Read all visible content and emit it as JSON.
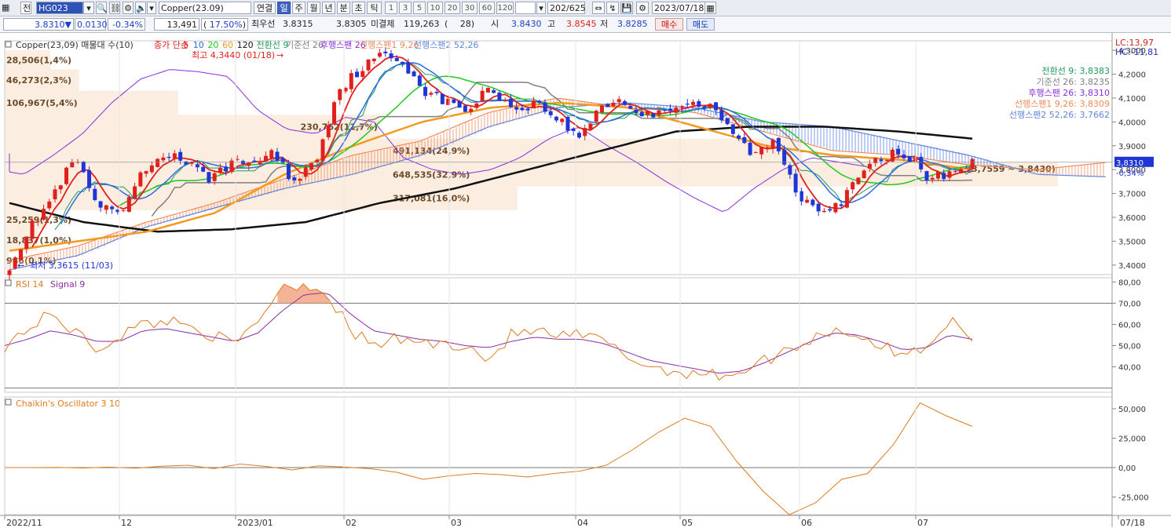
{
  "toolbar": {
    "type_label": "전",
    "symbol_code": "HG023",
    "symbol_name": "Copper(23.09)",
    "continuous": "연결",
    "period_tabs": [
      "일",
      "주",
      "월",
      "년",
      "분",
      "초",
      "틱"
    ],
    "active_period": "일",
    "interval_buttons": [
      "1",
      "3",
      "5",
      "10",
      "20",
      "30",
      "60",
      "120"
    ],
    "count": "202",
    "count_total": "/625",
    "date": "2023/07/18"
  },
  "quote": {
    "price": "3.8310",
    "arrow": "▼",
    "change": "0.0130",
    "change_pct": "-0.34%",
    "volume": "13,491",
    "volume_ratio": "17.50%",
    "best_ask_label": "최우선",
    "best_ask": "3.8315",
    "best_bid": "3.8305",
    "open_interest_label": "미결제",
    "open_interest": "119,263",
    "oi_change": "28",
    "open_label": "시",
    "open": "3.8430",
    "high_label": "고",
    "high": "3.8545",
    "low_label": "저",
    "low": "3.8285",
    "buy_label": "매수",
    "sell_label": "매도"
  },
  "colors": {
    "candle_up": "#e0201c",
    "candle_down": "#1f35d6",
    "ma5": "#e0201c",
    "ma10": "#2a6ce0",
    "ma20": "#22c81e",
    "ma60": "#f39a23",
    "ma120": "#111111",
    "conversion": "#1e9a5a",
    "base": "#808080",
    "lagging": "#8a2ee0",
    "span1": "#f08a5a",
    "span2": "#5f86e0",
    "rsi": "#e07a20",
    "signal": "#8a2ea8",
    "chaikin": "#e07a20"
  },
  "chart_data": [
    {
      "type": "candlestick",
      "title": "Copper(23,09) 매물대 수(10)",
      "indicators_legend": [
        "종가 단순",
        "5",
        "10",
        "20",
        "60",
        "120",
        "전환선 9",
        "기준선 26",
        "후행스팬 26",
        "선행스팬1 9,26",
        "선행스팬2 52,26"
      ],
      "ylim": [
        3.36,
        4.34
      ],
      "y_ticks": [
        "4,3000",
        "4,2000",
        "4,1000",
        "4,0000",
        "3,9000",
        "3,8000",
        "3,7000",
        "3,6000",
        "3,5000",
        "3,4000"
      ],
      "y_tick_values": [
        4.3,
        4.2,
        4.1,
        4.0,
        3.9,
        3.8,
        3.7,
        3.6,
        3.5,
        3.4
      ],
      "x_labels": [
        "2022/11",
        "12",
        "2023/01",
        "02",
        "03",
        "04",
        "05",
        "06",
        "07",
        "07/18"
      ],
      "lc_label": "LC:13,97",
      "hc_label": "HC:-11,81",
      "max_label": "최고 4,3440 (01/18)",
      "min_label": "최저 3,3615 (11/03)",
      "current_price_label": "3,8310",
      "current_pct_label": "-0,34%",
      "volume_profile": [
        {
          "label": "28,506(1,4%)",
          "low": 4.22,
          "high": 4.3,
          "share": 0.014
        },
        {
          "label": "46,273(2,3%)",
          "low": 4.13,
          "high": 4.22,
          "share": 0.023
        },
        {
          "label": "106,967(5,4%)",
          "low": 4.03,
          "high": 4.13,
          "share": 0.054
        },
        {
          "label": "230,762(11,7%)",
          "low": 3.93,
          "high": 4.03,
          "share": 0.117
        },
        {
          "label": "491,134(24,9%)",
          "low": 3.83,
          "high": 3.93,
          "share": 0.249
        },
        {
          "label": "648,535(32,9%)",
          "low": 3.73,
          "high": 3.83,
          "share": 0.329
        },
        {
          "label": "317,081(16,0%)",
          "low": 3.63,
          "high": 3.73,
          "share": 0.16
        },
        {
          "label": "25,259(1,3%)",
          "low": 3.55,
          "high": 3.63,
          "share": 0.013
        },
        {
          "label": "18,837(1,0%)",
          "low": 3.46,
          "high": 3.55,
          "share": 0.01
        },
        {
          "label": "986(0,1%)",
          "low": 3.38,
          "high": 3.46,
          "share": 0.001
        }
      ],
      "profile_range_label": "(3,7559 ~ 3,8430)",
      "ichimoku_values": [
        {
          "label": "전환선 9: 3,8383"
        },
        {
          "label": "기준선 26: 3,8235"
        },
        {
          "label": "후행스팬 26: 3,8310"
        },
        {
          "label": "선행스팬1 9,26: 3,8309"
        },
        {
          "label": "선행스팬2 52,26: 3,7662"
        }
      ],
      "close_anchors": [
        3.4,
        3.56,
        3.69,
        3.85,
        3.65,
        3.6,
        3.77,
        3.87,
        3.84,
        3.76,
        3.82,
        3.83,
        3.87,
        3.75,
        3.84,
        4.13,
        4.22,
        4.28,
        4.25,
        4.13,
        4.08,
        4.05,
        4.15,
        4.05,
        4.08,
        4.02,
        3.93,
        4.07,
        4.09,
        4.02,
        4.06,
        4.08,
        4.06,
        3.96,
        3.86,
        3.92,
        3.7,
        3.64,
        3.66,
        3.79,
        3.86,
        3.87,
        3.76,
        3.79,
        3.83
      ],
      "lagging_span": [
        3.85,
        3.82,
        3.87,
        3.8,
        3.78,
        3.86,
        3.95,
        4.08,
        4.18,
        4.22,
        4.21,
        4.19,
        4.05,
        3.97,
        3.95,
        4.02,
        4.0,
        3.85,
        3.8,
        3.78,
        3.8,
        3.85,
        3.93,
        3.98,
        3.9,
        3.83,
        3.75,
        3.68,
        3.62,
        3.72,
        3.8,
        3.85,
        3.83,
        3.81
      ]
    },
    {
      "type": "line",
      "title": "RSI 14",
      "series_names": [
        "RSI 14",
        "Signal 9"
      ],
      "ylim": [
        28,
        82
      ],
      "y_ticks": [
        "80,00",
        "70,00",
        "60,00",
        "50,00",
        "40,00"
      ],
      "y_tick_values": [
        80,
        70,
        60,
        50,
        40
      ],
      "rsi_anchors": [
        50,
        58,
        65,
        57,
        48,
        55,
        60,
        62,
        60,
        55,
        50,
        62,
        78,
        79,
        75,
        57,
        50,
        53,
        52,
        50,
        51,
        43,
        55,
        57,
        54,
        55,
        52,
        45,
        40,
        38,
        37,
        36,
        38,
        43,
        48,
        53,
        58,
        55,
        50,
        45,
        50,
        62,
        52
      ],
      "signal_anchors": [
        50,
        53,
        57,
        55,
        52,
        52,
        57,
        58,
        56,
        54,
        52,
        56,
        66,
        74,
        75,
        65,
        57,
        55,
        53,
        52,
        50,
        49,
        52,
        54,
        53,
        53,
        51,
        47,
        43,
        41,
        39,
        37,
        38,
        42,
        47,
        52,
        56,
        55,
        52,
        48,
        49,
        55,
        53
      ]
    },
    {
      "type": "line",
      "title": "Chaikin's Oscillator 3 10",
      "series_names": [
        "Chaikin's Oscillator 3 10"
      ],
      "ylim": [
        -40000,
        60000
      ],
      "y_ticks": [
        "50,000",
        "25,000",
        "0,00",
        "-25,000"
      ],
      "y_tick_values": [
        50000,
        25000,
        0,
        -25000
      ],
      "values": [
        0,
        0,
        200,
        -300,
        400,
        -500,
        1200,
        2000,
        -800,
        3000,
        1000,
        -2000,
        1500,
        500,
        -1000,
        -4000,
        -10000,
        -7000,
        -5000,
        -6000,
        -8000,
        -5000,
        -3000,
        2000,
        15000,
        30000,
        42000,
        35000,
        5000,
        -20000,
        -40000,
        -30000,
        -10000,
        -5000,
        20000,
        55000,
        44000,
        35000
      ]
    }
  ]
}
